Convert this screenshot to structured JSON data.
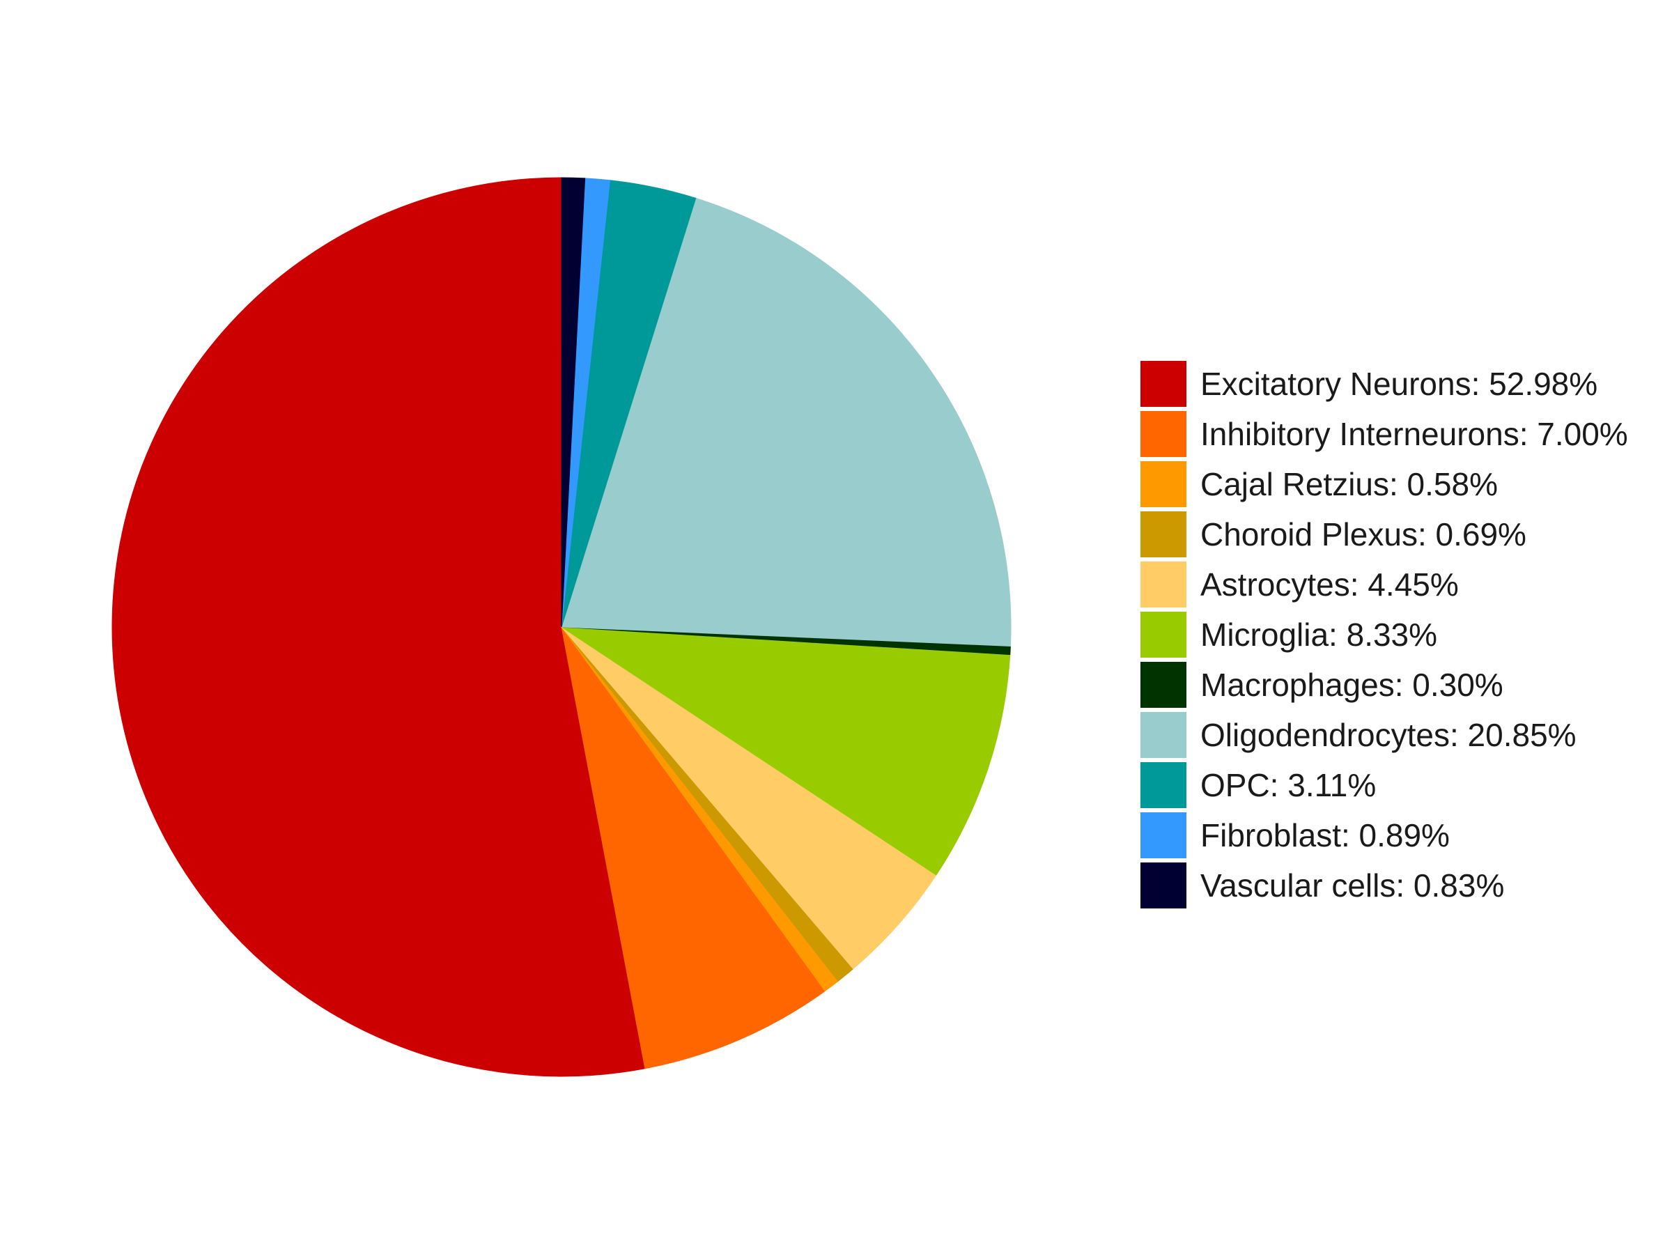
{
  "chart_data": {
    "type": "pie",
    "title": "",
    "start_angle": "12 o'clock",
    "direction": "counterclockwise",
    "legend_position": "right",
    "slices": [
      {
        "label": "Excitatory Neurons: 52.98%",
        "category": "Excitatory Neurons",
        "value": 52.98,
        "color": "#CC0000"
      },
      {
        "label": "Inhibitory Interneurons: 7.00%",
        "category": "Inhibitory Interneurons",
        "value": 7.0,
        "color": "#FF6600"
      },
      {
        "label": "Cajal Retzius: 0.58%",
        "category": "Cajal Retzius",
        "value": 0.58,
        "color": "#FF9900"
      },
      {
        "label": "Choroid Plexus: 0.69%",
        "category": "Choroid Plexus",
        "value": 0.69,
        "color": "#CC9900"
      },
      {
        "label": "Astrocytes: 4.45%",
        "category": "Astrocytes",
        "value": 4.45,
        "color": "#FFCC66"
      },
      {
        "label": "Microglia: 8.33%",
        "category": "Microglia",
        "value": 8.33,
        "color": "#99CC00"
      },
      {
        "label": "Macrophages: 0.30%",
        "category": "Macrophages",
        "value": 0.3,
        "color": "#003300"
      },
      {
        "label": "Oligodendrocytes: 20.85%",
        "category": "Oligodendrocytes",
        "value": 20.85,
        "color": "#99CCCC"
      },
      {
        "label": "OPC: 3.11%",
        "category": "OPC",
        "value": 3.11,
        "color": "#009999"
      },
      {
        "label": "Fibroblast: 0.89%",
        "category": "Fibroblast",
        "value": 0.89,
        "color": "#3399FF"
      },
      {
        "label": "Vascular cells: 0.83%",
        "category": "Vascular cells",
        "value": 0.83,
        "color": "#000033"
      }
    ]
  }
}
